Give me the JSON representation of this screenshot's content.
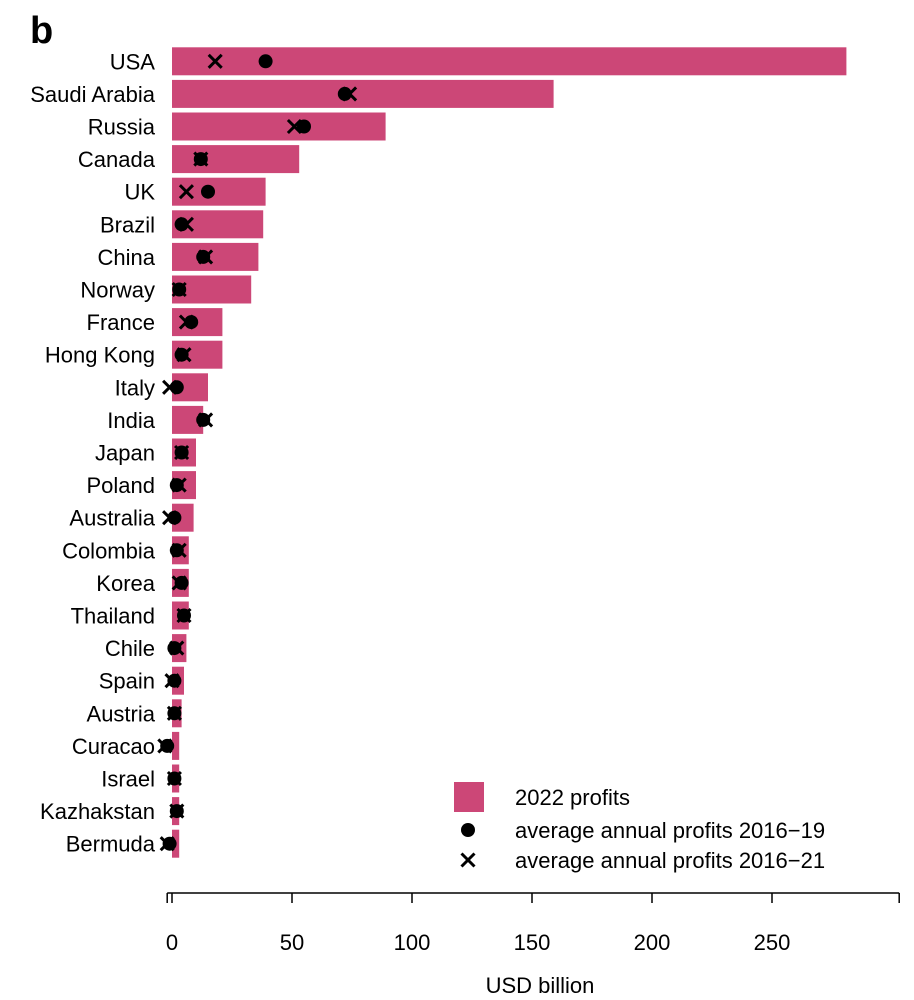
{
  "panel_label": "b",
  "colors": {
    "bar": "#cc4777",
    "marker": "#000000"
  },
  "chart_data": {
    "type": "bar",
    "orientation": "horizontal",
    "categories": [
      "USA",
      "Saudi Arabia",
      "Russia",
      "Canada",
      "UK",
      "Brazil",
      "China",
      "Norway",
      "France",
      "Hong Kong",
      "Italy",
      "India",
      "Japan",
      "Poland",
      "Australia",
      "Colombia",
      "Korea",
      "Thailand",
      "Chile",
      "Spain",
      "Austria",
      "Curacao",
      "Israel",
      "Kazhakstan",
      "Bermuda"
    ],
    "series": [
      {
        "name": "2022 profits",
        "mark": "bar",
        "values": [
          281,
          159,
          89,
          53,
          39,
          38,
          36,
          33,
          21,
          21,
          15,
          13,
          10,
          10,
          9,
          7,
          7,
          7,
          6,
          5,
          4,
          3,
          3,
          3,
          3
        ]
      },
      {
        "name": "average annual profits 2016−19",
        "mark": "dot",
        "values": [
          39,
          72,
          55,
          12,
          15,
          4,
          13,
          3,
          8,
          4,
          2,
          13,
          4,
          2,
          1,
          2,
          4,
          5,
          1,
          1,
          1,
          -2,
          1,
          2,
          -1
        ]
      },
      {
        "name": "average annual profits 2016−21",
        "mark": "cross",
        "values": [
          18,
          74,
          51,
          12,
          6,
          6,
          14,
          3,
          6,
          5,
          -1,
          14,
          4,
          3,
          -1,
          3,
          3,
          5,
          2,
          0,
          1,
          -3,
          1,
          2,
          -2
        ]
      }
    ],
    "xlabel": "USD billion",
    "xlim": [
      -2,
      303
    ],
    "xticks": [
      "0",
      "50",
      "100",
      "150",
      "200",
      "250"
    ],
    "legend_position": "bottom-right",
    "grid": false
  }
}
